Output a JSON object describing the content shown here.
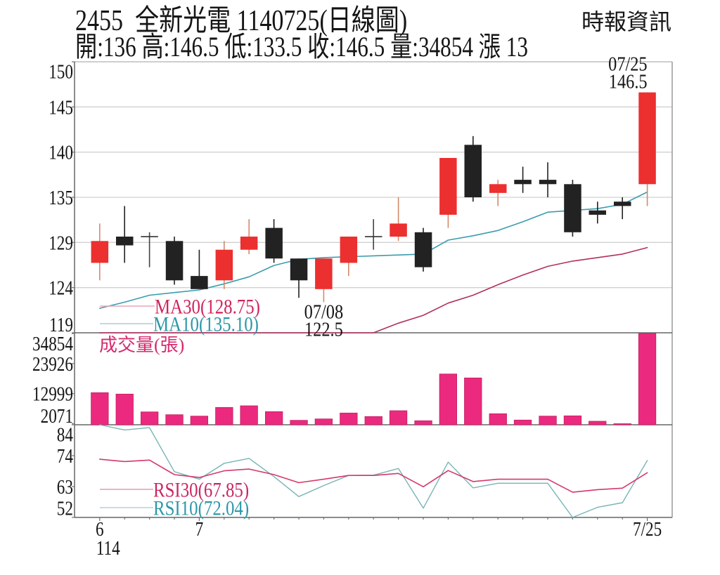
{
  "header": {
    "title": "2455  全新光電 1140725(日線圖)",
    "summary": "開:136 高:146.5 低:133.5 收:146.5 量:34854 漲 13",
    "source": "時報資訊"
  },
  "colors": {
    "up": "#ec2f2f",
    "up_wick": "#d4896a",
    "down": "#222222",
    "doji": "#333333",
    "ma30": "#b23060",
    "ma10": "#3a9dae",
    "ma30_legend_line": "#e8a6b8",
    "ma10_legend_line": "#a8cdd0",
    "ma30_text": "#d0245c",
    "ma10_text": "#2a97a8",
    "volume": "#eb2a7f",
    "volume_edge": "#c21f62",
    "volume_title": "#d62a6e",
    "rsi30": "#d4396b",
    "rsi10": "#78b4b6",
    "rsi30_legend_line": "#e59bb1",
    "rsi10_legend_line": "#b6d4d6",
    "rsi30_text": "#c92763",
    "rsi10_text": "#2d98a8",
    "grid": "#d0d0d0",
    "axis": "#707070",
    "frame": "#9a9a9a",
    "text": "#151515"
  },
  "chart_data": [
    {
      "panel": "price",
      "type": "candlestick",
      "title": "2455 全新光電 1140725(日線圖)",
      "xlabel": "",
      "ylabel": "",
      "ylim": [
        119,
        150
      ],
      "y_ticks": [
        "150",
        "145",
        "140",
        "135",
        "129",
        "124",
        "119"
      ],
      "grid": true,
      "legend_position": "bottom-left",
      "candles": [
        {
          "o": 127,
          "h": 131.5,
          "l": 125,
          "c": 129.5
        },
        {
          "o": 130,
          "h": 133.5,
          "l": 127,
          "c": 129
        },
        {
          "o": 130,
          "h": 130.5,
          "l": 126.5,
          "c": 130
        },
        {
          "o": 129.5,
          "h": 130,
          "l": 124.5,
          "c": 125
        },
        {
          "o": 125.5,
          "h": 128.5,
          "l": 124,
          "c": 124
        },
        {
          "o": 125,
          "h": 129.5,
          "l": 124,
          "c": 128.5
        },
        {
          "o": 128.5,
          "h": 132,
          "l": 128,
          "c": 130
        },
        {
          "o": 131,
          "h": 132,
          "l": 127,
          "c": 127.5
        },
        {
          "o": 127.5,
          "h": 127.5,
          "l": 123,
          "c": 125
        },
        {
          "o": 124,
          "h": 127.5,
          "l": 122.5,
          "c": 127.5
        },
        {
          "o": 127,
          "h": 130,
          "l": 125.5,
          "c": 130
        },
        {
          "o": 130,
          "h": 132,
          "l": 128.5,
          "c": 130
        },
        {
          "o": 130,
          "h": 134.5,
          "l": 129.5,
          "c": 131.5
        },
        {
          "o": 130.5,
          "h": 131,
          "l": 126,
          "c": 126.5
        },
        {
          "o": 132.5,
          "h": 139,
          "l": 131,
          "c": 139
        },
        {
          "o": 140.5,
          "h": 141.5,
          "l": 134,
          "c": 134.5
        },
        {
          "o": 135,
          "h": 136.5,
          "l": 133.5,
          "c": 136
        },
        {
          "o": 136.5,
          "h": 138,
          "l": 135,
          "c": 136
        },
        {
          "o": 136.5,
          "h": 138.5,
          "l": 134.5,
          "c": 136
        },
        {
          "o": 136,
          "h": 136.5,
          "l": 130,
          "c": 130.5
        },
        {
          "o": 133,
          "h": 134,
          "l": 131.5,
          "c": 132.5
        },
        {
          "o": 134,
          "h": 134.5,
          "l": 132,
          "c": 133.5
        },
        {
          "o": 136,
          "h": 146.5,
          "l": 133.5,
          "c": 146.5
        }
      ],
      "series": [
        {
          "name": "MA30",
          "legend": "MA30(128.75)",
          "note": "null = below visible axis (drawn along bottom edge)",
          "values": [
            null,
            null,
            null,
            null,
            null,
            null,
            null,
            null,
            null,
            null,
            null,
            119.0,
            120.1,
            121.0,
            122.4,
            123.3,
            124.5,
            125.6,
            126.6,
            127.2,
            127.6,
            128.0,
            128.75
          ]
        },
        {
          "name": "MA10",
          "legend": "MA10(135.10)",
          "values": [
            121.8,
            122.5,
            123.3,
            123.6,
            123.9,
            124.6,
            125.4,
            126.7,
            127.4,
            127.6,
            127.7,
            127.8,
            127.9,
            128.0,
            129.6,
            130.1,
            130.7,
            131.7,
            132.8,
            133.0,
            133.2,
            133.7,
            135.1
          ]
        }
      ],
      "annotations": [
        {
          "index": 9,
          "label": "07/08",
          "value": "122.5",
          "position": "below"
        },
        {
          "index": 22,
          "label": "07/25",
          "value": "146.5",
          "position": "above"
        }
      ]
    },
    {
      "panel": "volume",
      "type": "bar",
      "title": "成交量(張)",
      "ylim": [
        2071,
        34854
      ],
      "y_ticks": [
        "34854",
        "23926",
        "12999",
        "2071"
      ],
      "values": [
        13350,
        12840,
        6360,
        5340,
        4830,
        7990,
        8580,
        6460,
        3300,
        3810,
        5950,
        4670,
        6790,
        3140,
        20130,
        18700,
        5690,
        3400,
        4830,
        4930,
        2960,
        2071,
        34854
      ]
    },
    {
      "panel": "rsi",
      "type": "line",
      "ylim": [
        52.4,
        84.4
      ],
      "y_ticks": [
        "84",
        "74",
        "63",
        "52"
      ],
      "series": [
        {
          "name": "RSI30",
          "legend": "RSI30(67.85)",
          "values": [
            72.5,
            71.7,
            72.2,
            67.2,
            66.2,
            68.5,
            69.1,
            67.2,
            64.4,
            65.6,
            66.9,
            66.9,
            67.6,
            63.0,
            68.6,
            64.8,
            65.6,
            65.6,
            65.6,
            61.1,
            62.0,
            62.5,
            67.85
          ]
        },
        {
          "name": "RSI10",
          "legend": "RSI10(72.04)",
          "values": [
            84.4,
            82.6,
            83.4,
            68.2,
            65.6,
            71.1,
            72.8,
            66.5,
            59.6,
            63.4,
            66.9,
            67.0,
            69.3,
            55.6,
            71.5,
            62.6,
            64.2,
            64.2,
            64.2,
            52.4,
            55.9,
            57.5,
            72.04
          ]
        }
      ],
      "x_ticks": [
        {
          "index": 0,
          "label": "6",
          "sublabel": "114"
        },
        {
          "index": 4,
          "label": "7"
        },
        {
          "index": 22,
          "label": "7/25"
        }
      ]
    }
  ]
}
